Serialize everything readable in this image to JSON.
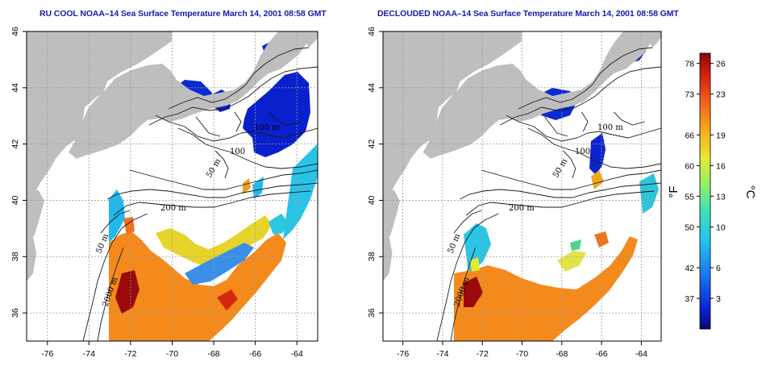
{
  "panels": [
    {
      "id": "rucool",
      "title": "RU COOL NOAA–14 Sea Surface Temperature March 14, 2001 08:58 GMT",
      "contour_labels": [
        "100 m",
        "100",
        "50 m",
        "200 m",
        "50 m",
        "2000 m"
      ]
    },
    {
      "id": "declouded",
      "title": "DECLOUDED NOAA–14 Sea Surface Temperature March 14, 2001 08:58 GMT",
      "contour_labels": [
        "100 m",
        "100",
        "50 m",
        "200 m",
        "50 m",
        "2000 m"
      ]
    }
  ],
  "axes": {
    "x_ticks": [
      "-76",
      "-74",
      "-72",
      "-70",
      "-68",
      "-66",
      "-64"
    ],
    "y_ticks": [
      "36",
      "38",
      "40",
      "42",
      "44",
      "46"
    ],
    "x_values": [
      -76,
      -74,
      -72,
      -70,
      -68,
      -66,
      -64
    ],
    "y_values": [
      36,
      38,
      40,
      42,
      44,
      46
    ],
    "lon_range": [
      -77,
      -63
    ],
    "lat_range": [
      35,
      46
    ]
  },
  "colorbar": {
    "fahrenheit_ticks": [
      "78",
      "73",
      "66",
      "60",
      "55",
      "50",
      "42",
      "37"
    ],
    "celsius_ticks": [
      "26",
      "23",
      "19",
      "16",
      "13",
      "10",
      "6",
      "3"
    ],
    "celsius_values": [
      26,
      23,
      19,
      16,
      13,
      10,
      6,
      3
    ],
    "range_c": [
      0,
      27
    ],
    "fahrenheit_unit": "°F",
    "celsius_unit": "°C"
  },
  "colors": {
    "land": "#bebebe",
    "title": "#1a1aa8",
    "grid": "#9a9a9a",
    "scale": [
      "#060672",
      "#0a28d8",
      "#1c78f0",
      "#22c4ee",
      "#3fe2b4",
      "#8ef06c",
      "#e6ea30",
      "#f8aa1e",
      "#f2641a",
      "#d4200e",
      "#8a0606"
    ]
  }
}
